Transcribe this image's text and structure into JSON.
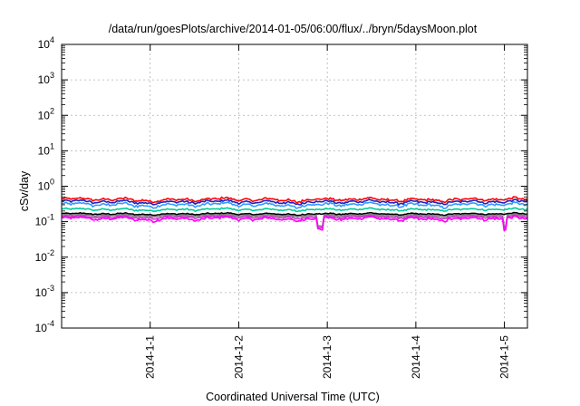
{
  "chart_data": {
    "type": "line",
    "title": "/data/run/goesPlots/archive/2014-01-05/06:00/flux/../bryn/5daysMoon.plot",
    "xlabel": "Coordinated Universal Time (UTC)",
    "ylabel": "cSv/day",
    "yscale": "log",
    "ylim": [
      0.0001,
      10000
    ],
    "xlim": [
      0,
      5.26
    ],
    "grid": true,
    "legend": "none",
    "y_ticks": [
      {
        "value": 0.0001,
        "base": "10",
        "exp": "-4"
      },
      {
        "value": 0.001,
        "base": "10",
        "exp": "-3"
      },
      {
        "value": 0.01,
        "base": "10",
        "exp": "-2"
      },
      {
        "value": 0.1,
        "base": "10",
        "exp": "-1"
      },
      {
        "value": 1,
        "base": "10",
        "exp": "0"
      },
      {
        "value": 10,
        "base": "10",
        "exp": "1"
      },
      {
        "value": 100,
        "base": "10",
        "exp": "2"
      },
      {
        "value": 1000,
        "base": "10",
        "exp": "3"
      },
      {
        "value": 10000,
        "base": "10",
        "exp": "4"
      }
    ],
    "x_ticks": [
      {
        "value": 1,
        "label": "2014-1-1"
      },
      {
        "value": 2,
        "label": "2014-1-2"
      },
      {
        "value": 3,
        "label": "2014-1-3"
      },
      {
        "value": 4,
        "label": "2014-1-4"
      },
      {
        "value": 5,
        "label": "2014-1-5"
      }
    ],
    "series": [
      {
        "color": "#ff0000",
        "level": 0.42,
        "variation": 0.12
      },
      {
        "color": "#2020c0",
        "level": 0.36,
        "variation": 0.12
      },
      {
        "color": "#3399ff",
        "level": 0.3,
        "variation": 0.14
      },
      {
        "color": "#00cc99",
        "level": 0.22,
        "variation": 0.08
      },
      {
        "color": "#000000",
        "level": 0.165,
        "variation": 0.06
      },
      {
        "color": "#808080",
        "level": 0.15,
        "variation": 0.06
      },
      {
        "color": "#cc33cc",
        "level": 0.135,
        "variation": 0.08
      },
      {
        "color": "#ff00ff",
        "level": 0.12,
        "variation": 0.12
      }
    ]
  }
}
